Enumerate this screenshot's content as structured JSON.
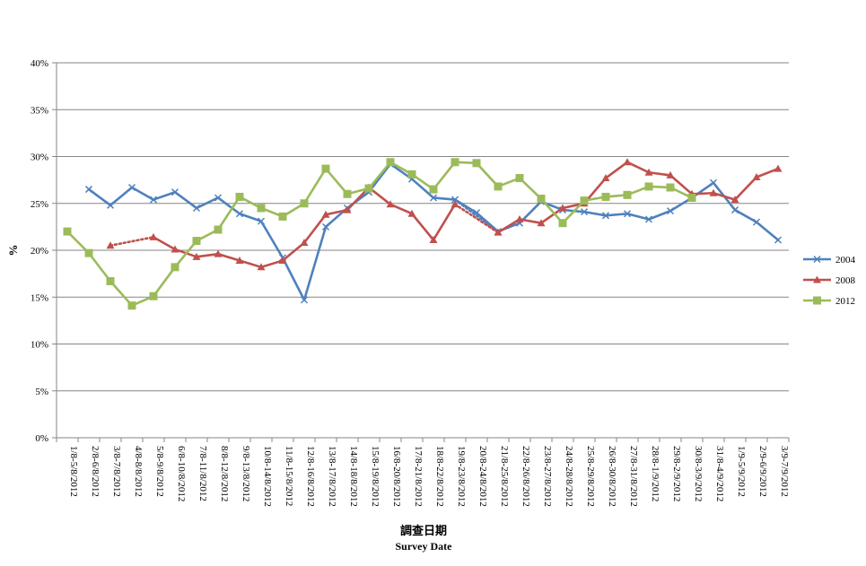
{
  "chart_data": {
    "type": "line",
    "title": "",
    "ylabel": "%",
    "xlabel": "調查日期",
    "xlabel_en": "Survey Date",
    "ylim": [
      0,
      40
    ],
    "yticks": [
      0,
      5,
      10,
      15,
      20,
      25,
      30,
      35,
      40
    ],
    "ytick_labels": [
      "0%",
      "5%",
      "10%",
      "15%",
      "20%",
      "25%",
      "30%",
      "35%",
      "40%"
    ],
    "grid": "horizontal",
    "legend_position": "right",
    "categories": [
      "1/8-5/8/2012",
      "2/8-6/8/2012",
      "3/8-7/8/2012",
      "4/8-8/8/2012",
      "5/8-9/8/2012",
      "6/8-10/8/2012",
      "7/8-11/8/2012",
      "8/8-12/8/2012",
      "9/8-13/8/2012",
      "10/8-14/8/2012",
      "11/8-15/8/2012",
      "12/8-16/8/2012",
      "13/8-17/8/2012",
      "14/8-18/8/2012",
      "15/8-19/8/2012",
      "16/8-20/8/2012",
      "17/8-21/8/2012",
      "18/8-22/8/2012",
      "19/8-23/8/2012",
      "20/8-24/8/2012",
      "21/8-25/8/2012",
      "22/8-26/8/2012",
      "23/8-27/8/2012",
      "24/8-28/8/2012",
      "25/8-29/8/2012",
      "26/8-30/8/2012",
      "27/8-31/8/2012",
      "28/8-1/9/2012",
      "29/8-2/9/2012",
      "30/8-3/9/2012",
      "31/8-4/9/2012",
      "1/9-5/9/2012",
      "2/9-6/9/2012",
      "3/9-7/9/2012"
    ],
    "series": [
      {
        "name": "2004",
        "color": "#4F81BD",
        "marker": "x",
        "values": [
          null,
          26.5,
          24.8,
          26.7,
          25.4,
          26.2,
          24.5,
          25.6,
          23.9,
          23.1,
          19.2,
          14.7,
          22.5,
          24.5,
          26.2,
          29.2,
          27.6,
          25.6,
          25.4,
          24.0,
          22.0,
          22.9,
          25.2,
          24.3,
          24.1,
          23.7,
          23.9,
          23.3,
          24.2,
          25.6,
          27.2,
          24.3,
          23.0,
          21.1
        ],
        "dotted_segments": [
          [
            18,
            20
          ]
        ]
      },
      {
        "name": "2008",
        "color": "#C0504D",
        "marker": "triangle",
        "values": [
          null,
          null,
          20.5,
          null,
          21.4,
          20.1,
          19.3,
          19.6,
          18.9,
          18.2,
          18.9,
          20.8,
          23.8,
          24.3,
          26.7,
          24.9,
          23.9,
          21.1,
          24.9,
          null,
          21.9,
          23.3,
          22.9,
          24.5,
          25.0,
          27.7,
          29.4,
          28.3,
          28.0,
          26.0,
          26.1,
          25.4,
          27.8,
          28.7
        ],
        "dotted_segments": [
          [
            2,
            4
          ],
          [
            18,
            20
          ]
        ]
      },
      {
        "name": "2012",
        "color": "#9BBB59",
        "marker": "square",
        "values": [
          22.0,
          19.7,
          16.7,
          14.1,
          15.1,
          18.2,
          21.0,
          22.2,
          25.7,
          24.5,
          23.6,
          25.0,
          28.7,
          26.0,
          26.6,
          29.4,
          28.1,
          26.5,
          29.4,
          29.3,
          26.8,
          27.7,
          25.5,
          22.9,
          25.3,
          25.7,
          25.9,
          26.8,
          26.7,
          25.6,
          null,
          null,
          null,
          null
        ],
        "dotted_segments": []
      }
    ]
  }
}
